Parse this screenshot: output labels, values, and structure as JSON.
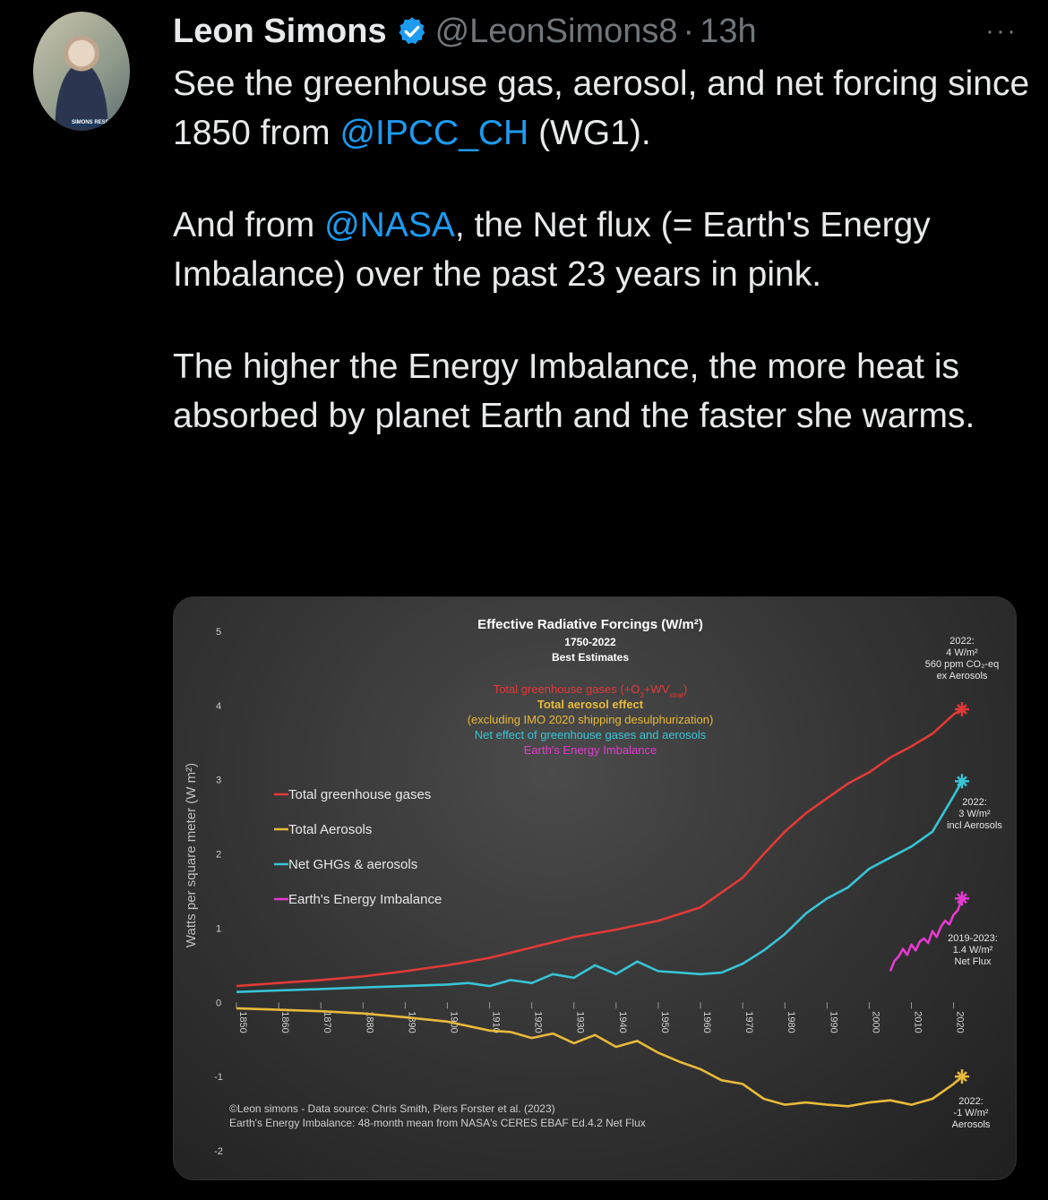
{
  "tweet": {
    "author_name": "Leon Simons",
    "handle": "@LeonSimons8",
    "separator": "·",
    "time": "13h",
    "more": "···",
    "avatar_badge": "SIMONS RESEARCHER",
    "p1_a": "See the greenhouse gas, aerosol, and net forcing since 1850 from ",
    "p1_link": "@IPCC_CH",
    "p1_b": " (WG1).",
    "p2_a": "And from ",
    "p2_link": "@NASA",
    "p2_b": ", the Net flux (= Earth's Energy Imbalance) over the past 23 years in pink.",
    "p3": "The higher the Energy Imbalance, the more heat is absorbed by planet Earth and the faster she warms."
  },
  "colors": {
    "link": "#1d9bf0",
    "ghg": "#e23a37",
    "aerosol": "#e8b93a",
    "net": "#38c4d6",
    "eei": "#e43ad0",
    "muted": "#71767b",
    "verified": "#1d9bf0"
  },
  "chart_data": {
    "type": "line",
    "title": "Effective Radiative Forcings (W/m²)",
    "subtitle_1": "1750-2022",
    "subtitle_2": "Best Estimates",
    "ylabel": "Watts per square meter (W m²)",
    "ylim": [
      -2,
      5
    ],
    "yticks": [
      "5",
      "4",
      "3",
      "2",
      "1",
      "0",
      "-1",
      "-2"
    ],
    "xticks": [
      "1850",
      "1860",
      "1870",
      "1880",
      "1890",
      "1900",
      "1910",
      "1920",
      "1930",
      "1940",
      "1950",
      "1960",
      "1970",
      "1980",
      "1990",
      "2000",
      "2010",
      "2020"
    ],
    "xlim": [
      1850,
      2022
    ],
    "legend_notes": {
      "ghg_prefix": "Total greenhouse gases (+O",
      "ghg_sub1": "3",
      "ghg_mid": "+WV",
      "ghg_sub2": "strat",
      "ghg_suffix": ")",
      "aer_1": "Total aerosol effect",
      "aer_2": "(excluding IMO 2020 shipping desulphurization)",
      "net": "Net effect of greenhouse gases and aerosols",
      "eei": "Earth's Energy Imbalance"
    },
    "legend": [
      {
        "label": "Total greenhouse gases",
        "color_key": "ghg"
      },
      {
        "label": "Total Aerosols",
        "color_key": "aerosol"
      },
      {
        "label": "Net GHGs & aerosols",
        "color_key": "net"
      },
      {
        "label": "Earth's Energy Imbalance",
        "color_key": "eei"
      }
    ],
    "annotations": {
      "ghg": [
        "2022:",
        "4 W/m²",
        "560 ppm CO₂-eq",
        "ex Aerosols"
      ],
      "net": [
        "2022:",
        "3 W/m²",
        "incl Aerosols"
      ],
      "eei": [
        "2019-2023:",
        "1.4 W/m²",
        "Net Flux"
      ],
      "aer": [
        "2022:",
        "-1 W/m²",
        "Aerosols"
      ]
    },
    "credits": [
      "©Leon simons - Data source: Chris Smith, Piers Forster et al. (2023)",
      "Earth's Energy Imbalance: 48-month mean from NASA's CERES EBAF Ed.4.2 Net Flux"
    ],
    "series": [
      {
        "name": "Total greenhouse gases",
        "color_key": "ghg",
        "x": [
          1850,
          1860,
          1870,
          1880,
          1890,
          1900,
          1910,
          1920,
          1930,
          1940,
          1950,
          1960,
          1970,
          1975,
          1980,
          1985,
          1990,
          1995,
          2000,
          2005,
          2010,
          2015,
          2020,
          2022
        ],
        "y": [
          0.22,
          0.26,
          0.3,
          0.35,
          0.42,
          0.5,
          0.6,
          0.74,
          0.88,
          0.98,
          1.1,
          1.28,
          1.68,
          2.0,
          2.3,
          2.55,
          2.75,
          2.95,
          3.1,
          3.3,
          3.45,
          3.62,
          3.88,
          3.95
        ]
      },
      {
        "name": "Total Aerosols",
        "color_key": "aerosol",
        "x": [
          1850,
          1860,
          1870,
          1880,
          1890,
          1900,
          1905,
          1910,
          1915,
          1920,
          1925,
          1930,
          1935,
          1940,
          1945,
          1950,
          1955,
          1960,
          1965,
          1970,
          1975,
          1980,
          1985,
          1990,
          1995,
          2000,
          2005,
          2010,
          2015,
          2020,
          2022
        ],
        "y": [
          -0.08,
          -0.1,
          -0.12,
          -0.15,
          -0.2,
          -0.26,
          -0.32,
          -0.38,
          -0.4,
          -0.48,
          -0.42,
          -0.55,
          -0.44,
          -0.6,
          -0.52,
          -0.68,
          -0.8,
          -0.9,
          -1.05,
          -1.1,
          -1.3,
          -1.38,
          -1.35,
          -1.38,
          -1.4,
          -1.35,
          -1.32,
          -1.38,
          -1.3,
          -1.1,
          -1.0
        ]
      },
      {
        "name": "Net GHGs & aerosols",
        "color_key": "net",
        "x": [
          1850,
          1860,
          1870,
          1880,
          1890,
          1900,
          1905,
          1910,
          1915,
          1920,
          1925,
          1930,
          1935,
          1940,
          1945,
          1950,
          1955,
          1960,
          1965,
          1970,
          1975,
          1980,
          1985,
          1990,
          1995,
          2000,
          2005,
          2010,
          2015,
          2020,
          2022
        ],
        "y": [
          0.14,
          0.16,
          0.18,
          0.2,
          0.22,
          0.24,
          0.26,
          0.22,
          0.3,
          0.26,
          0.38,
          0.33,
          0.5,
          0.38,
          0.55,
          0.42,
          0.4,
          0.38,
          0.4,
          0.52,
          0.7,
          0.92,
          1.2,
          1.4,
          1.55,
          1.8,
          1.95,
          2.1,
          2.3,
          2.78,
          2.98
        ]
      },
      {
        "name": "Earth's Energy Imbalance",
        "color_key": "eei",
        "x": [
          2005,
          2006,
          2007,
          2008,
          2009,
          2010,
          2011,
          2012,
          2013,
          2014,
          2015,
          2016,
          2017,
          2018,
          2019,
          2020,
          2021,
          2022
        ],
        "y": [
          0.42,
          0.56,
          0.62,
          0.72,
          0.64,
          0.78,
          0.7,
          0.82,
          0.86,
          0.8,
          0.96,
          0.88,
          1.02,
          1.1,
          1.05,
          1.18,
          1.24,
          1.4
        ]
      }
    ]
  }
}
